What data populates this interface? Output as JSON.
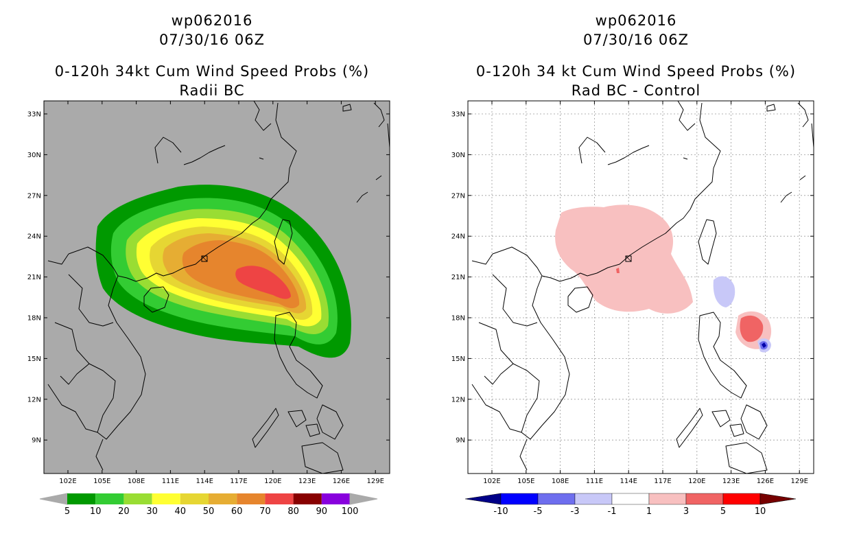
{
  "left": {
    "title_line1": "wp062016",
    "title_line2": "07/30/16 06Z",
    "title_line3": "0-120h 34kt Cum Wind Speed Probs (%)",
    "title_line4": "Radii BC",
    "lat_labels": [
      "33N",
      "30N",
      "27N",
      "24N",
      "21N",
      "18N",
      "15N",
      "12N",
      "9N"
    ],
    "lon_labels": [
      "102E",
      "105E",
      "108E",
      "111E",
      "114E",
      "117E",
      "120E",
      "123E",
      "126E",
      "129E"
    ],
    "colorbar": {
      "labels": [
        "5",
        "10",
        "20",
        "30",
        "40",
        "50",
        "60",
        "70",
        "80",
        "90",
        "100"
      ],
      "colors": [
        "#009900",
        "#33cc33",
        "#99dd33",
        "#ffff33",
        "#e6d633",
        "#e6ad33",
        "#e6852d",
        "#ee4444",
        "#880000",
        "#8800dd"
      ],
      "low_arrow": "#aaaaaa",
      "high_arrow": "#aaaaaa"
    }
  },
  "right": {
    "title_line1": "wp062016",
    "title_line2": "07/30/16 06Z",
    "title_line3": "0-120h 34 kt Cum Wind Speed Probs (%)",
    "title_line4": "Rad BC - Control",
    "lat_labels": [
      "33N",
      "30N",
      "27N",
      "24N",
      "21N",
      "18N",
      "15N",
      "12N",
      "9N"
    ],
    "lon_labels": [
      "102E",
      "105E",
      "108E",
      "111E",
      "114E",
      "117E",
      "120E",
      "123E",
      "126E",
      "129E"
    ],
    "colorbar": {
      "labels": [
        "-10",
        "-5",
        "-3",
        "-1",
        "1",
        "3",
        "5",
        "10"
      ],
      "colors": [
        "#0000aa",
        "#0000ff",
        "#6e6eee",
        "#c8c8f8",
        "#ffffff",
        "#f8c0c0",
        "#f06464",
        "#ff0000",
        "#880000"
      ],
      "low_arrow": "#000088",
      "high_arrow": "#770000"
    }
  }
}
